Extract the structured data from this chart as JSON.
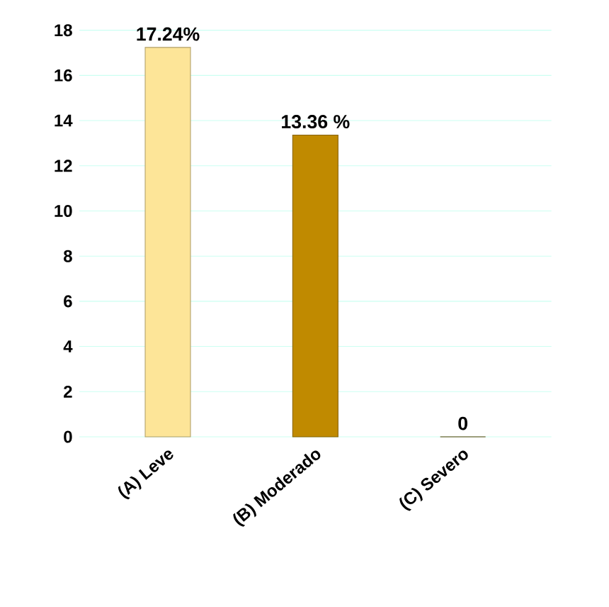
{
  "chart_data": {
    "type": "bar",
    "categories": [
      "(A) Leve",
      "(B) Moderado",
      "(C) Severo"
    ],
    "values": [
      17.24,
      13.36,
      0
    ],
    "colors": [
      "#fde598",
      "#c08a00",
      "#7a5a00"
    ],
    "value_labels": [
      "17.24%",
      "13.36  %",
      "0"
    ],
    "ylim": [
      0,
      18
    ],
    "yticks": [
      0,
      2,
      4,
      6,
      8,
      10,
      12,
      14,
      16,
      18
    ],
    "grid": "y"
  }
}
